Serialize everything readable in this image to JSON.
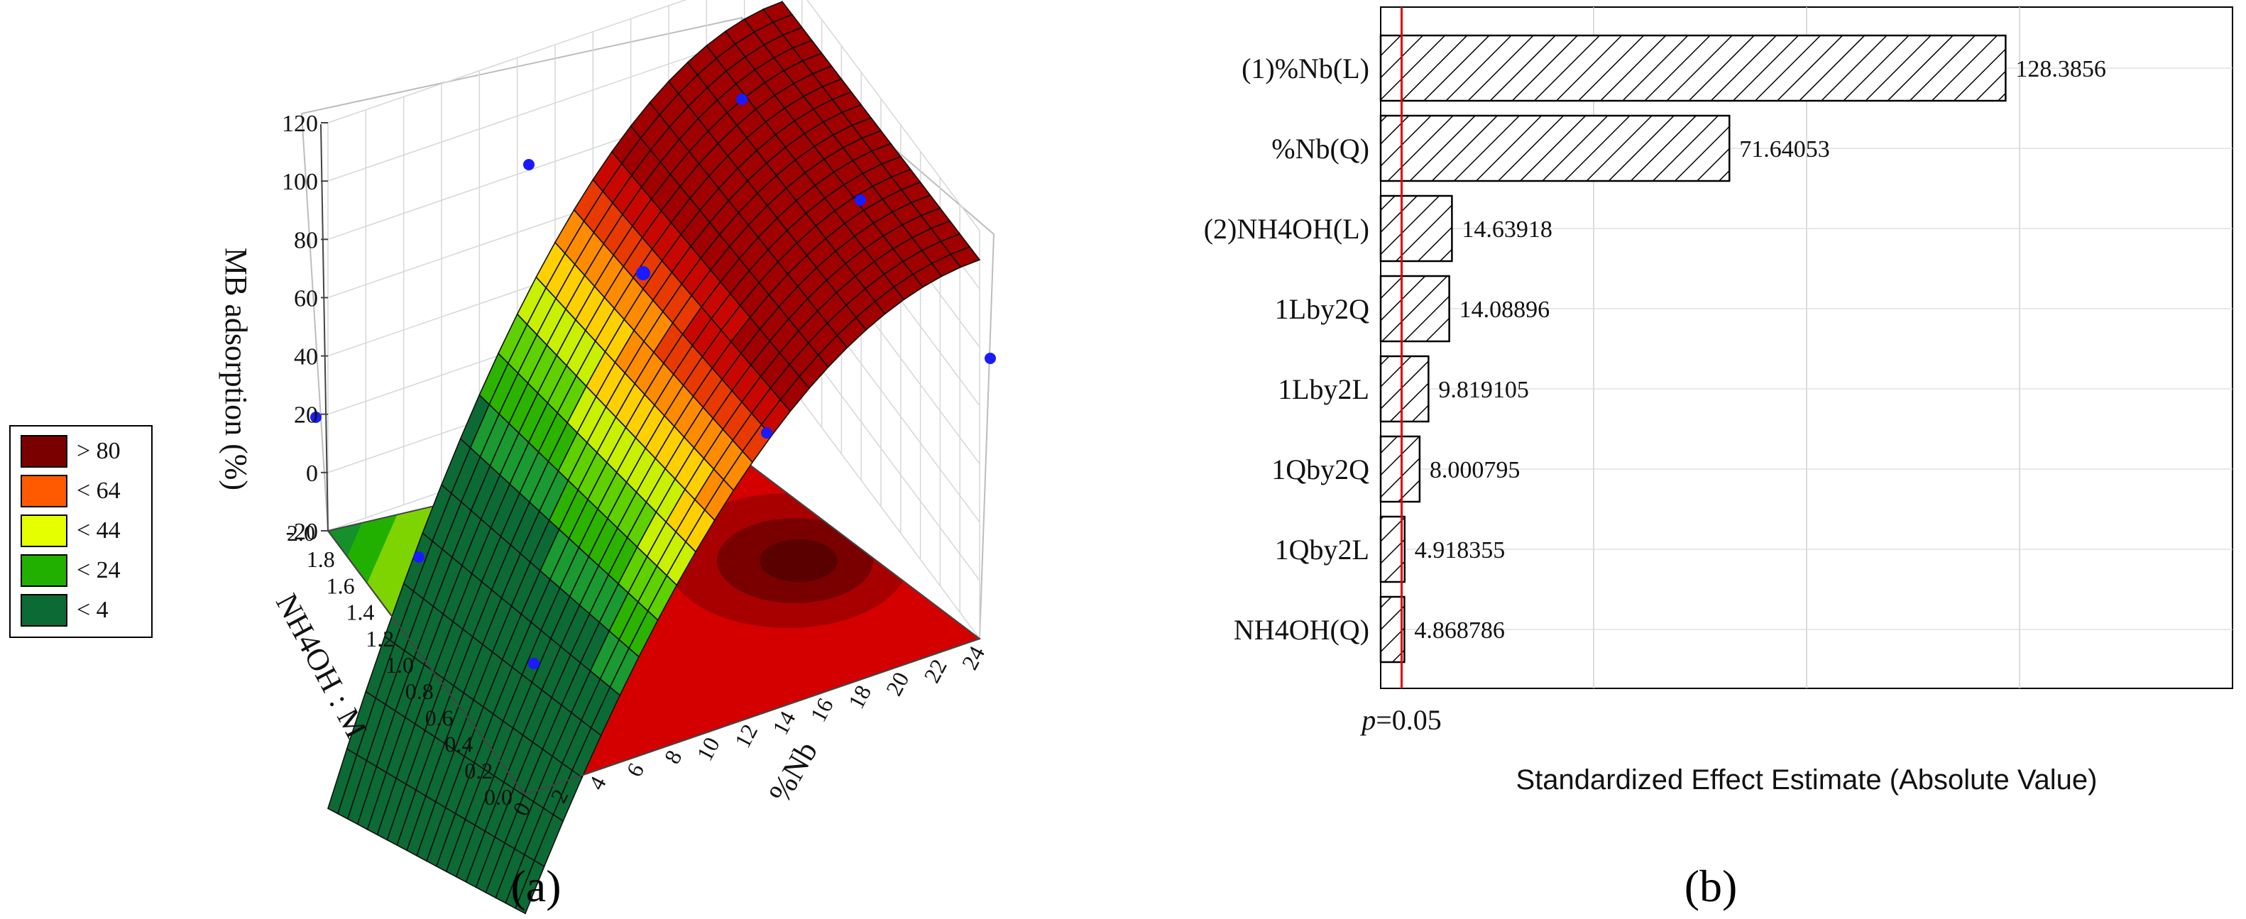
{
  "panel_a_label": "(a)",
  "panel_b_label": "(b)",
  "chart_data": [
    {
      "type": "surface3d",
      "zlabel": "MB adsorption (%)",
      "xlabel": "%Nb",
      "ylabel": "NH4OH : M",
      "x_ticks": [
        "0",
        "2",
        "4",
        "6",
        "8",
        "10",
        "12",
        "14",
        "16",
        "18",
        "20",
        "22",
        "24"
      ],
      "y_ticks": [
        "0.0",
        "0.2",
        "0.4",
        "0.6",
        "0.8",
        "1.0",
        "1.2",
        "1.4",
        "1.6",
        "1.8",
        "2.0"
      ],
      "z_ticks": [
        "-20",
        "0",
        "20",
        "40",
        "60",
        "80",
        "100",
        "120"
      ],
      "xlim": [
        0,
        24
      ],
      "ylim": [
        0,
        2
      ],
      "zlim": [
        -20,
        120
      ],
      "legend": [
        {
          "label": "> 80",
          "color": "#7a0000"
        },
        {
          "label": "< 64",
          "color": "#ff5a00"
        },
        {
          "label": "< 44",
          "color": "#e6ff00"
        },
        {
          "label": "< 24",
          "color": "#22b000"
        },
        {
          "label": "< 4",
          "color": "#0c6a35"
        }
      ],
      "legend_position": "left"
    },
    {
      "type": "bar",
      "orientation": "horizontal",
      "xlabel": "Standardized Effect Estimate (Absolute Value)",
      "categories": [
        "(1)%Nb(L)",
        "%Nb(Q)",
        "(2)NH4OH(L)",
        "1Lby2Q",
        "1Lby2L",
        "1Qby2Q",
        "1Qby2L",
        "NH4OH(Q)"
      ],
      "values": [
        128.3856,
        71.64053,
        14.63918,
        14.08896,
        9.819105,
        8.000795,
        4.918355,
        4.868786
      ],
      "value_labels": [
        "128.3856",
        "71.64053",
        "14.63918",
        "14.08896",
        "9.819105",
        "8.000795",
        "4.918355",
        "4.868786"
      ],
      "xlim": [
        0,
        175
      ],
      "reference_line": {
        "label_p": "p",
        "label_rest": "=0.05",
        "value": 4.3,
        "color": "#e00000"
      },
      "bar_fill": "diagonal-hatch",
      "grid": true
    }
  ]
}
